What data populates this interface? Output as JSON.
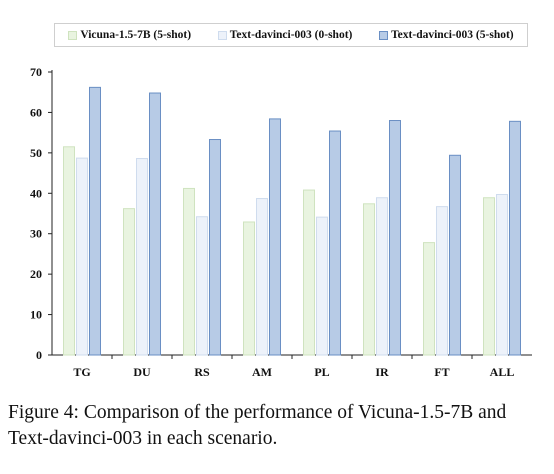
{
  "chart_data": {
    "type": "bar",
    "categories": [
      "TG",
      "DU",
      "RS",
      "AM",
      "PL",
      "IR",
      "FT",
      "ALL"
    ],
    "series": [
      {
        "name": "Vicuna-1.5-7B (5-shot)",
        "values": [
          51.5,
          36.2,
          41.2,
          32.9,
          40.8,
          37.4,
          27.8,
          38.9
        ],
        "fill": "#e9f4e0",
        "stroke": "#cfe3bf"
      },
      {
        "name": "Text-davinci-003 (0-shot)",
        "values": [
          48.7,
          48.6,
          34.2,
          38.7,
          34.1,
          38.9,
          36.7,
          39.7
        ],
        "fill": "#edf2fa",
        "stroke": "#cfdcee"
      },
      {
        "name": "Text-davinci-003 (5-shot)",
        "values": [
          66.2,
          64.8,
          53.3,
          58.4,
          55.4,
          58.0,
          49.4,
          57.8
        ],
        "fill": "#b7cbe6",
        "stroke": "#6a8fc4"
      }
    ],
    "ylim": [
      0,
      70
    ],
    "yticks": [
      "0",
      "10",
      "20",
      "30",
      "40",
      "50",
      "60",
      "70"
    ],
    "grid": false,
    "legend": "top"
  },
  "caption": "Figure 4: Comparison of the performance of Vicuna-1.5-7B and Text-davinci-003 in each scenario."
}
